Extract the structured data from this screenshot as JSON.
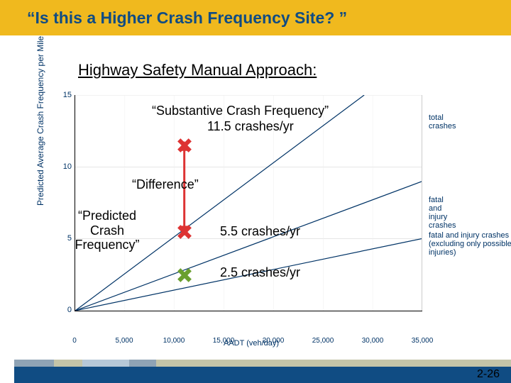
{
  "title": "“Is this a Higher Crash Frequency Site? ”",
  "title_bg": "#f0b91e",
  "subtitle": "Highway Safety Manual Approach:",
  "chart": {
    "type": "line",
    "line_color": "#003366",
    "ylabel": "Predicted Average Crash Frequency per Mile",
    "xlabel": "AADT (veh/day)",
    "ylim": [
      0,
      15
    ],
    "xlim": [
      0,
      35000
    ],
    "yticks": [
      0,
      5,
      10,
      15
    ],
    "xticks": [
      0,
      5000,
      10000,
      15000,
      20000,
      25000,
      30000,
      35000
    ],
    "xtick_labels": [
      "0",
      "5,000",
      "10,000",
      "15,000",
      "20,000",
      "25,000",
      "30,000",
      "35,000"
    ],
    "series": [
      {
        "label": "total crashes",
        "points": [
          [
            0,
            0
          ],
          [
            35000,
            18
          ]
        ]
      },
      {
        "label": "fatal and injury crashes",
        "points": [
          [
            0,
            0
          ],
          [
            35000,
            9
          ]
        ]
      },
      {
        "label": "fatal and injury crashes\n(excluding only possible injuries)",
        "points": [
          [
            0,
            0
          ],
          [
            35000,
            5
          ]
        ]
      }
    ]
  },
  "markers": {
    "m1": {
      "color": "#dd3333",
      "aadt": 11000,
      "value": 11.5
    },
    "m2": {
      "color": "#dd3333",
      "aadt": 11000,
      "value": 5.5
    },
    "m3": {
      "color": "#6a9f2e",
      "aadt": 11000,
      "value": 2.5
    }
  },
  "arrow_color": "#dd3333",
  "annot": {
    "substantive": "“Substantive Crash Frequency”",
    "substantive_val": "11.5 crashes/yr",
    "difference": "“Difference”",
    "predicted": "“Predicted Crash Frequency”",
    "val2": "5.5 crashes/yr",
    "val3": "2.5 crashes/yr"
  },
  "footer": {
    "stripes": [
      "#8fa3b5",
      "#c4c4a8",
      "#b6c8d8",
      "#8fa3b5",
      "#c4c4a8"
    ],
    "main_color": "#104c83"
  },
  "slidenum": "2-26"
}
